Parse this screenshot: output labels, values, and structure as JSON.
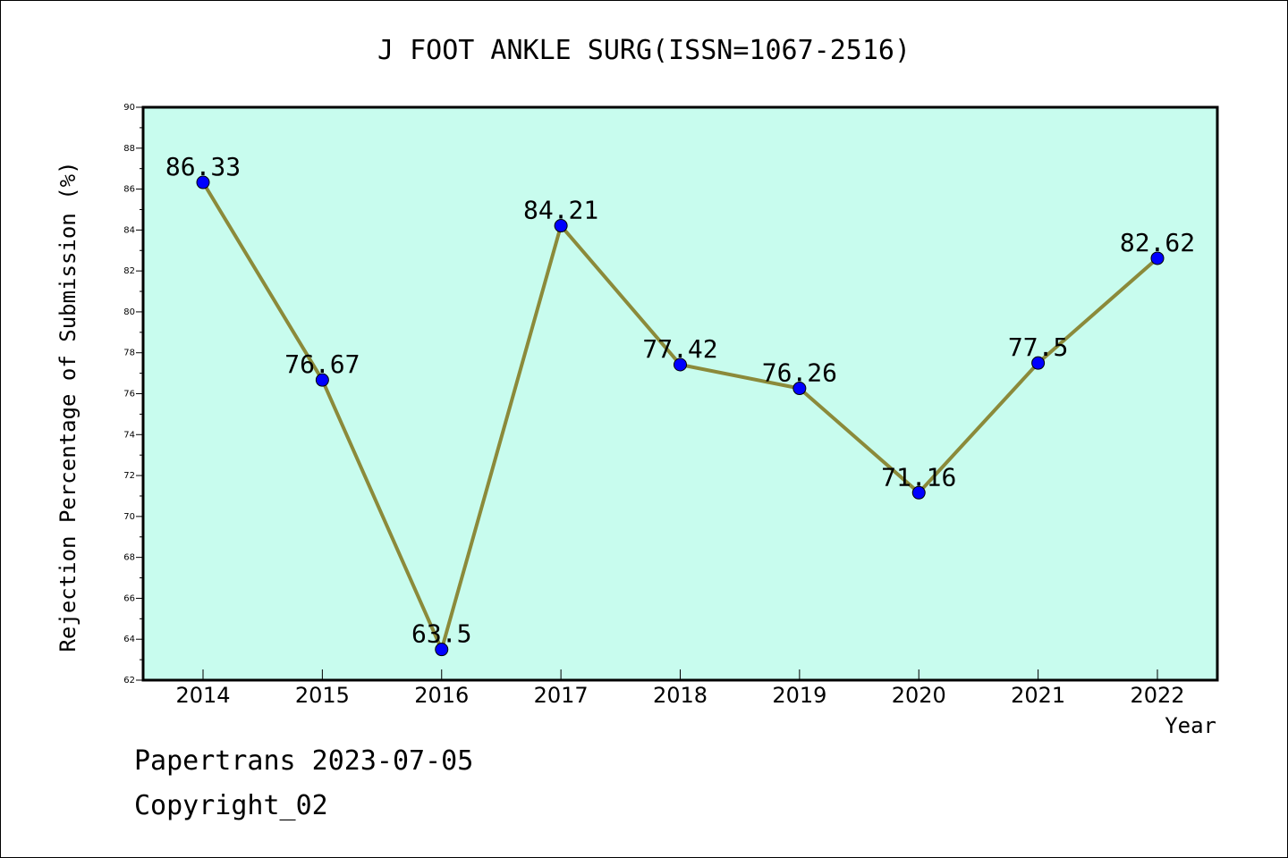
{
  "chart_data": {
    "type": "line",
    "title": "J FOOT ANKLE SURG(ISSN=1067-2516)",
    "xlabel": "Year",
    "ylabel": "Rejection Percentage of Submission (%)",
    "categories": [
      "2014",
      "2015",
      "2016",
      "2017",
      "2018",
      "2019",
      "2020",
      "2021",
      "2022"
    ],
    "series": [
      {
        "values": [
          86.33,
          76.67,
          63.5,
          84.21,
          77.42,
          76.26,
          71.16,
          77.5,
          82.62
        ],
        "labels": [
          "86.33",
          "76.67",
          "63.5",
          "84.21",
          "77.42",
          "76.26",
          "71.16",
          "77.5",
          "82.62"
        ]
      }
    ],
    "ylim": [
      62,
      90
    ],
    "yticks": [
      "62",
      "64",
      "66",
      "68",
      "70",
      "72",
      "74",
      "76",
      "78",
      "80",
      "82",
      "84",
      "86",
      "88",
      "90"
    ],
    "grid": false,
    "colors": {
      "plot_background": "#c8fcee",
      "line": "#8b8a3a",
      "marker": "#0000ff"
    }
  },
  "footer": {
    "line1": "Papertrans 2023-07-05",
    "line2": "Copyright_02"
  }
}
